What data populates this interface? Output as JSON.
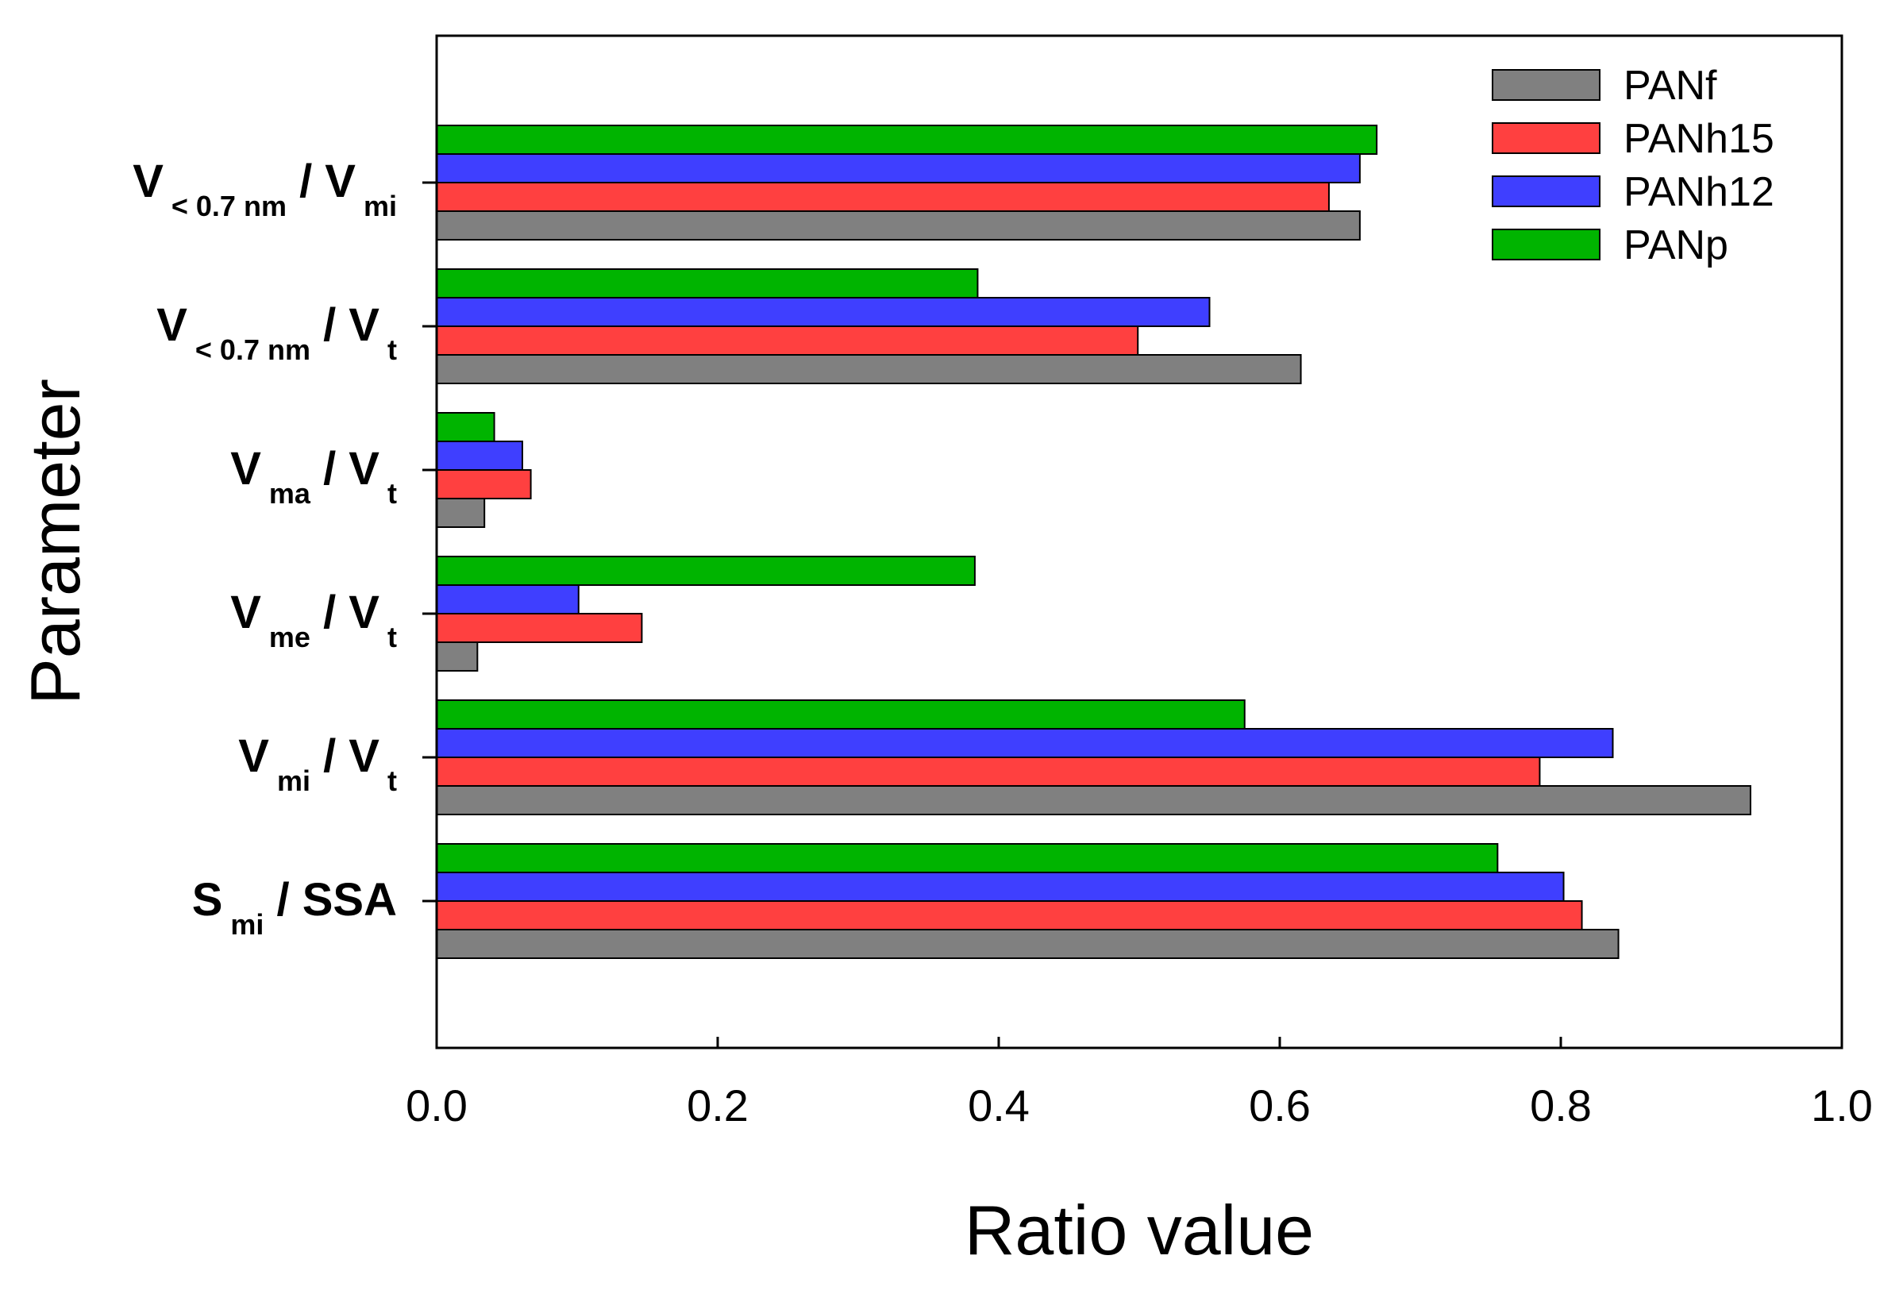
{
  "chart_data": {
    "type": "bar",
    "orientation": "horizontal",
    "xlabel": "Ratio value",
    "ylabel": "Parameter",
    "xlim": [
      0,
      1.0
    ],
    "xticks": [
      "0.0",
      "0.2",
      "0.4",
      "0.6",
      "0.8",
      "1.0"
    ],
    "grid": false,
    "legend_position": "top-right",
    "categories": [
      {
        "main": "V",
        "sub": "< 0.7 nm",
        "mid": " / V",
        "sub2": "mi"
      },
      {
        "main": "V",
        "sub": "< 0.7 nm",
        "mid": " / V",
        "sub2": "t"
      },
      {
        "main": "V",
        "sub": "ma",
        "mid": " / V",
        "sub2": "t"
      },
      {
        "main": "V",
        "sub": "me",
        "mid": " / V",
        "sub2": "t"
      },
      {
        "main": "V",
        "sub": "mi",
        "mid": " / V",
        "sub2": "t"
      },
      {
        "main": "S",
        "sub": "mi",
        "mid": " / SSA",
        "sub2": ""
      }
    ],
    "series": [
      {
        "name": "PANf",
        "color": "#808080",
        "values": [
          0.657,
          0.615,
          0.034,
          0.029,
          0.935,
          0.841
        ]
      },
      {
        "name": "PANh15",
        "color": "#ff4040",
        "values": [
          0.635,
          0.499,
          0.067,
          0.146,
          0.785,
          0.815
        ]
      },
      {
        "name": "PANh12",
        "color": "#3f3fff",
        "values": [
          0.657,
          0.55,
          0.061,
          0.101,
          0.837,
          0.802
        ]
      },
      {
        "name": "PANp",
        "color": "#00b400",
        "values": [
          0.669,
          0.385,
          0.041,
          0.383,
          0.575,
          0.755
        ]
      }
    ]
  }
}
